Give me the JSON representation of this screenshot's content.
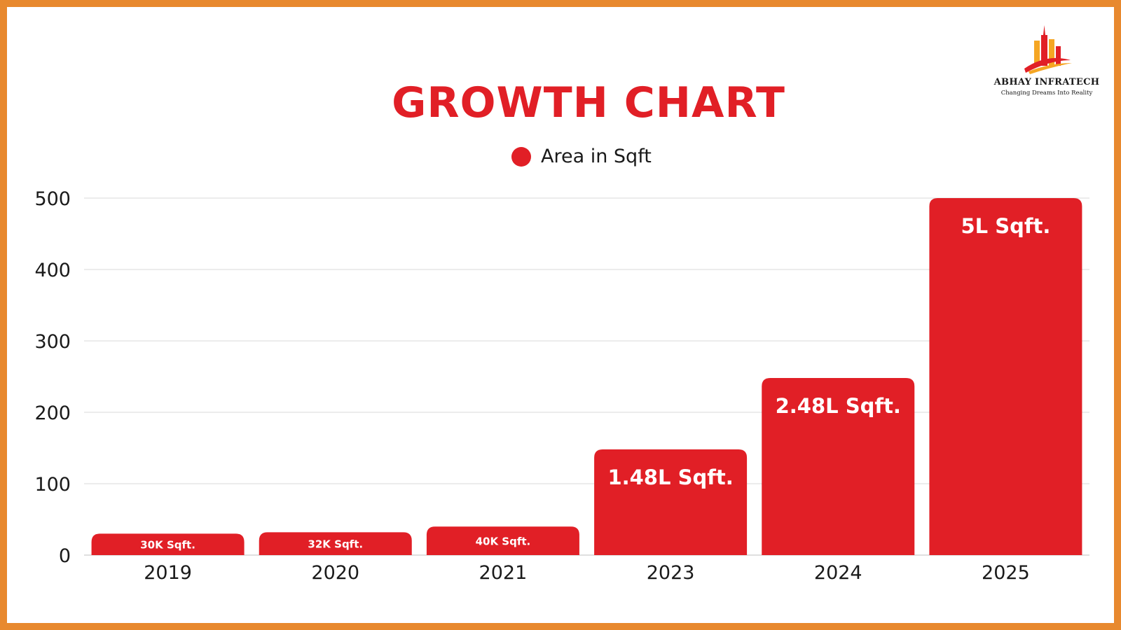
{
  "brand": {
    "name": "ABHAY INFRATECH",
    "tagline": "Changing Dreams Into Reality",
    "logo_icon": "building-skyline-logo-icon"
  },
  "colors": {
    "border": "#e8892e",
    "bar": "#e11f26",
    "title": "#e11f26",
    "grid": "#d9d9d9"
  },
  "chart_data": {
    "type": "bar",
    "title": "GROWTH CHART",
    "categories": [
      "2019",
      "2020",
      "2021",
      "2023",
      "2024",
      "2025"
    ],
    "series": [
      {
        "name": "Area in Sqft",
        "values": [
          30,
          32,
          40,
          148,
          248,
          500
        ],
        "data_labels": [
          "30K Sqft.",
          "32K Sqft.",
          "40K Sqft.",
          "1.48L Sqft.",
          "2.48L Sqft.",
          "5L Sqft."
        ]
      }
    ],
    "yticks": [
      "0",
      "100",
      "200",
      "300",
      "400",
      "500"
    ],
    "ylim": [
      0,
      500
    ],
    "xlabel": "",
    "ylabel": "",
    "grid": true,
    "legend_position": "top-center"
  }
}
